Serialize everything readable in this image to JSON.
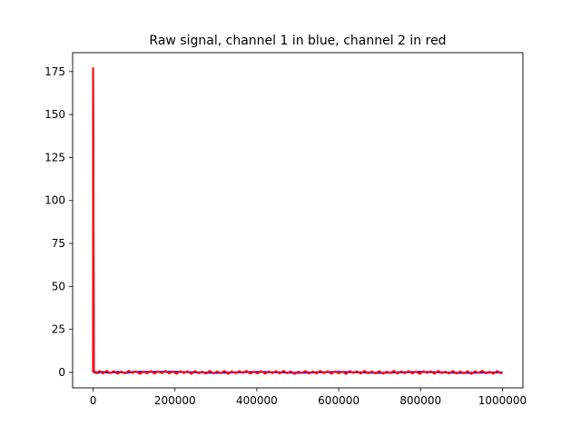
{
  "chart_data": {
    "type": "line",
    "title": "Raw signal, channel 1 in blue, channel 2 in red",
    "xlabel": "",
    "ylabel": "",
    "xlim": [
      -50000,
      1050000
    ],
    "ylim": [
      -9,
      186
    ],
    "xticks": [
      0,
      200000,
      400000,
      600000,
      800000,
      1000000
    ],
    "xtick_labels": [
      "0",
      "200000",
      "400000",
      "600000",
      "800000",
      "1000000"
    ],
    "yticks": [
      0,
      25,
      50,
      75,
      100,
      125,
      150,
      175
    ],
    "ytick_labels": [
      "0",
      "25",
      "50",
      "75",
      "100",
      "125",
      "150",
      "175"
    ],
    "grid": false,
    "series": [
      {
        "color": "#0000ff",
        "x": [
          0,
          0,
          2000,
          5000,
          12000,
          20000,
          40000,
          60000,
          80000,
          100000,
          200000,
          300000,
          400000,
          500000,
          600000,
          700000,
          800000,
          900000,
          1000000
        ],
        "y": [
          0,
          177,
          0,
          0.3,
          -0.3,
          0.3,
          -0.3,
          0.3,
          -0.3,
          0.3,
          0.3,
          -0.3,
          0.3,
          -0.3,
          0.3,
          -0.3,
          0.3,
          -0.3,
          0
        ]
      },
      {
        "color": "#ff0000",
        "x": [
          0,
          0,
          2000,
          8000,
          15000,
          24000,
          33000,
          42000,
          51000,
          60000,
          69000,
          78000,
          87000,
          96000,
          105000,
          114000,
          123000,
          132000,
          141000,
          150000,
          159000,
          168000,
          177000,
          186000,
          195000,
          204000,
          213000,
          222000,
          231000,
          240000,
          249000,
          258000,
          267000,
          276000,
          285000,
          294000,
          303000,
          312000,
          321000,
          330000,
          339000,
          348000,
          357000,
          366000,
          375000,
          384000,
          393000,
          402000,
          411000,
          420000,
          429000,
          438000,
          447000,
          456000,
          465000,
          474000,
          483000,
          492000,
          501000,
          510000,
          519000,
          528000,
          537000,
          546000,
          555000,
          564000,
          573000,
          582000,
          591000,
          600000,
          609000,
          618000,
          627000,
          636000,
          645000,
          654000,
          663000,
          672000,
          681000,
          690000,
          699000,
          708000,
          717000,
          726000,
          735000,
          744000,
          753000,
          762000,
          771000,
          780000,
          789000,
          798000,
          807000,
          816000,
          825000,
          834000,
          843000,
          852000,
          861000,
          870000,
          879000,
          888000,
          897000,
          906000,
          915000,
          924000,
          933000,
          942000,
          951000,
          960000,
          969000,
          978000,
          987000,
          996000,
          1000000
        ],
        "y": [
          0,
          177,
          0.2,
          -0.5,
          0.8,
          -0.6,
          0.9,
          -0.4,
          0.7,
          -0.8,
          0.5,
          -0.6,
          0.9,
          -0.3,
          0.6,
          -0.9,
          0.4,
          -0.5,
          0.8,
          -0.7,
          0.6,
          -0.4,
          0.9,
          -0.6,
          0.5,
          -0.8,
          0.7,
          -0.3,
          0.6,
          -0.9,
          0.8,
          -0.5,
          0.4,
          -0.7,
          0.9,
          -0.6,
          0.5,
          -0.4,
          0.8,
          -0.9,
          0.6,
          -0.5,
          0.7,
          -0.3,
          0.9,
          -0.7,
          0.4,
          -0.6,
          0.8,
          -0.8,
          0.5,
          -0.4,
          0.7,
          -0.6,
          0.9,
          -0.5,
          0.6,
          -0.9,
          0.4,
          -0.3,
          0.8,
          -0.7,
          0.5,
          -0.6,
          0.9,
          -0.4,
          0.7,
          -0.8,
          0.6,
          -0.5,
          0.4,
          -0.9,
          0.8,
          -0.3,
          0.6,
          -0.7,
          0.9,
          -0.5,
          0.5,
          -0.6,
          0.7,
          -0.8,
          0.4,
          -0.4,
          0.9,
          -0.7,
          0.6,
          -0.5,
          0.8,
          -0.6,
          0.5,
          -0.9,
          0.7,
          -0.3,
          0.6,
          -0.8,
          0.9,
          -0.4,
          0.4,
          -0.6,
          0.8,
          -0.7,
          0.5,
          -0.5,
          0.7,
          -0.9,
          0.6,
          -0.3,
          0.9,
          -0.6,
          0.4,
          -0.8,
          0.8,
          -0.5,
          -0.3
        ]
      }
    ]
  }
}
